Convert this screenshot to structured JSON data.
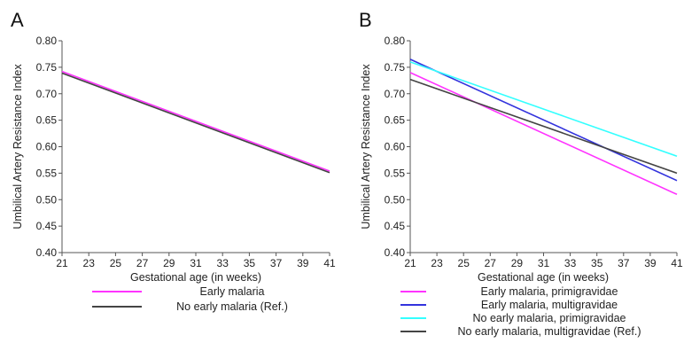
{
  "chart_data": [
    {
      "type": "line",
      "panel_label": "A",
      "xlabel": "Gestational age (in weeks)",
      "ylabel": "Umbilical Artery Resistance Index",
      "xlim": [
        21,
        41
      ],
      "ylim": [
        0.4,
        0.8
      ],
      "x_ticks": [
        "21",
        "23",
        "25",
        "27",
        "29",
        "31",
        "33",
        "35",
        "37",
        "39",
        "41"
      ],
      "y_ticks": [
        "0.40",
        "0.45",
        "0.50",
        "0.55",
        "0.60",
        "0.65",
        "0.70",
        "0.75",
        "0.80"
      ],
      "grid": false,
      "legend_position": "bottom",
      "series": [
        {
          "name": "Early malaria",
          "color": "#ff33ff",
          "x": [
            21,
            41
          ],
          "values": [
            0.742,
            0.554
          ]
        },
        {
          "name": "No early malaria (Ref.)",
          "color": "#444444",
          "x": [
            21,
            41
          ],
          "values": [
            0.739,
            0.551
          ]
        }
      ]
    },
    {
      "type": "line",
      "panel_label": "B",
      "xlabel": "Gestational age (in weeks)",
      "ylabel": "Umbilical Artery Resistance Index",
      "xlim": [
        21,
        41
      ],
      "ylim": [
        0.4,
        0.8
      ],
      "x_ticks": [
        "21",
        "23",
        "25",
        "27",
        "29",
        "31",
        "33",
        "35",
        "37",
        "39",
        "41"
      ],
      "y_ticks": [
        "0.40",
        "0.45",
        "0.50",
        "0.55",
        "0.60",
        "0.65",
        "0.70",
        "0.75",
        "0.80"
      ],
      "grid": false,
      "legend_position": "bottom",
      "series": [
        {
          "name": "Early malaria, primigravidae",
          "color": "#ff33ff",
          "x": [
            21,
            41
          ],
          "values": [
            0.74,
            0.51
          ]
        },
        {
          "name": "Early malaria, multigravidae",
          "color": "#3333dd",
          "x": [
            21,
            41
          ],
          "values": [
            0.765,
            0.536
          ]
        },
        {
          "name": "No early malaria, primigravidae",
          "color": "#33ffff",
          "x": [
            21,
            41
          ],
          "values": [
            0.76,
            0.582
          ]
        },
        {
          "name": "No early malaria, multigravidae (Ref.)",
          "color": "#444444",
          "x": [
            21,
            41
          ],
          "values": [
            0.727,
            0.55
          ]
        }
      ]
    }
  ]
}
